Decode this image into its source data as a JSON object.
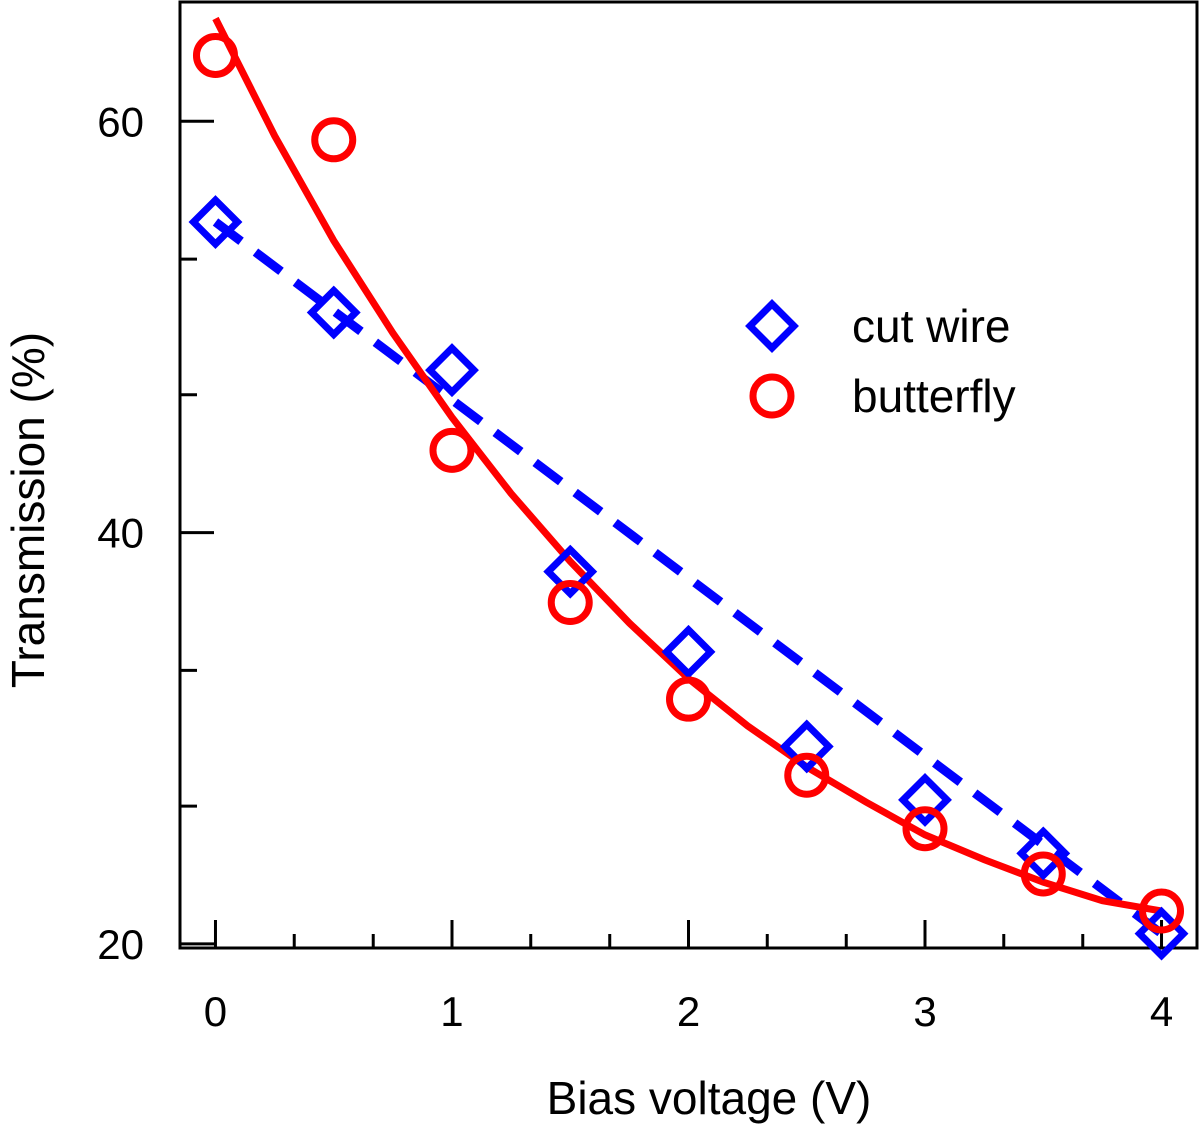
{
  "chart_data": {
    "type": "scatter",
    "title": "",
    "xlabel": "Bias voltage (V)",
    "ylabel": "Transmission (%)",
    "xlim": [
      -0.15,
      4.15
    ],
    "ylim": [
      19.8,
      65.8
    ],
    "x_ticks": [
      0,
      1,
      2,
      3,
      4
    ],
    "x_tick_labels": [
      "0",
      "1",
      "2",
      "3",
      "4"
    ],
    "x_minor_ticks": [
      0.333,
      0.667,
      1.333,
      1.667,
      2.333,
      2.667,
      3.333,
      3.667
    ],
    "y_ticks": [
      20,
      40,
      60
    ],
    "y_tick_labels": [
      "20",
      "40",
      "60"
    ],
    "y_minor_ticks": [
      26.7,
      33.3,
      46.7,
      53.3
    ],
    "grid": false,
    "legend_position": "upper-right",
    "series": [
      {
        "name": "cut wire",
        "marker": "diamond",
        "color": "#0000ff",
        "fit_style": "dashed",
        "x": [
          0,
          0.5,
          1,
          1.5,
          2,
          2.5,
          3,
          3.5,
          4
        ],
        "y": [
          55.1,
          50.7,
          47.9,
          38.1,
          34.2,
          29.6,
          27.0,
          24.4,
          20.5
        ],
        "fit": {
          "x": [
            0,
            4
          ],
          "y": [
            55.1,
            20.5
          ]
        }
      },
      {
        "name": "butterfly",
        "marker": "circle",
        "color": "#ff0000",
        "fit_style": "solid",
        "x": [
          0,
          0.5,
          1,
          1.5,
          2,
          2.5,
          3,
          3.5,
          4
        ],
        "y": [
          63.2,
          59.1,
          44.0,
          36.6,
          31.9,
          28.2,
          25.6,
          23.4,
          21.6
        ],
        "fit": {
          "x": [
            0,
            0.25,
            0.5,
            0.75,
            1,
            1.25,
            1.5,
            1.75,
            2,
            2.25,
            2.5,
            2.75,
            3,
            3.25,
            3.5,
            3.75,
            4
          ],
          "y": [
            65.0,
            59.3,
            54.2,
            49.7,
            45.6,
            41.9,
            38.6,
            35.6,
            32.9,
            30.6,
            28.6,
            26.9,
            25.3,
            24.1,
            23.0,
            22.1,
            21.6
          ]
        }
      }
    ]
  }
}
